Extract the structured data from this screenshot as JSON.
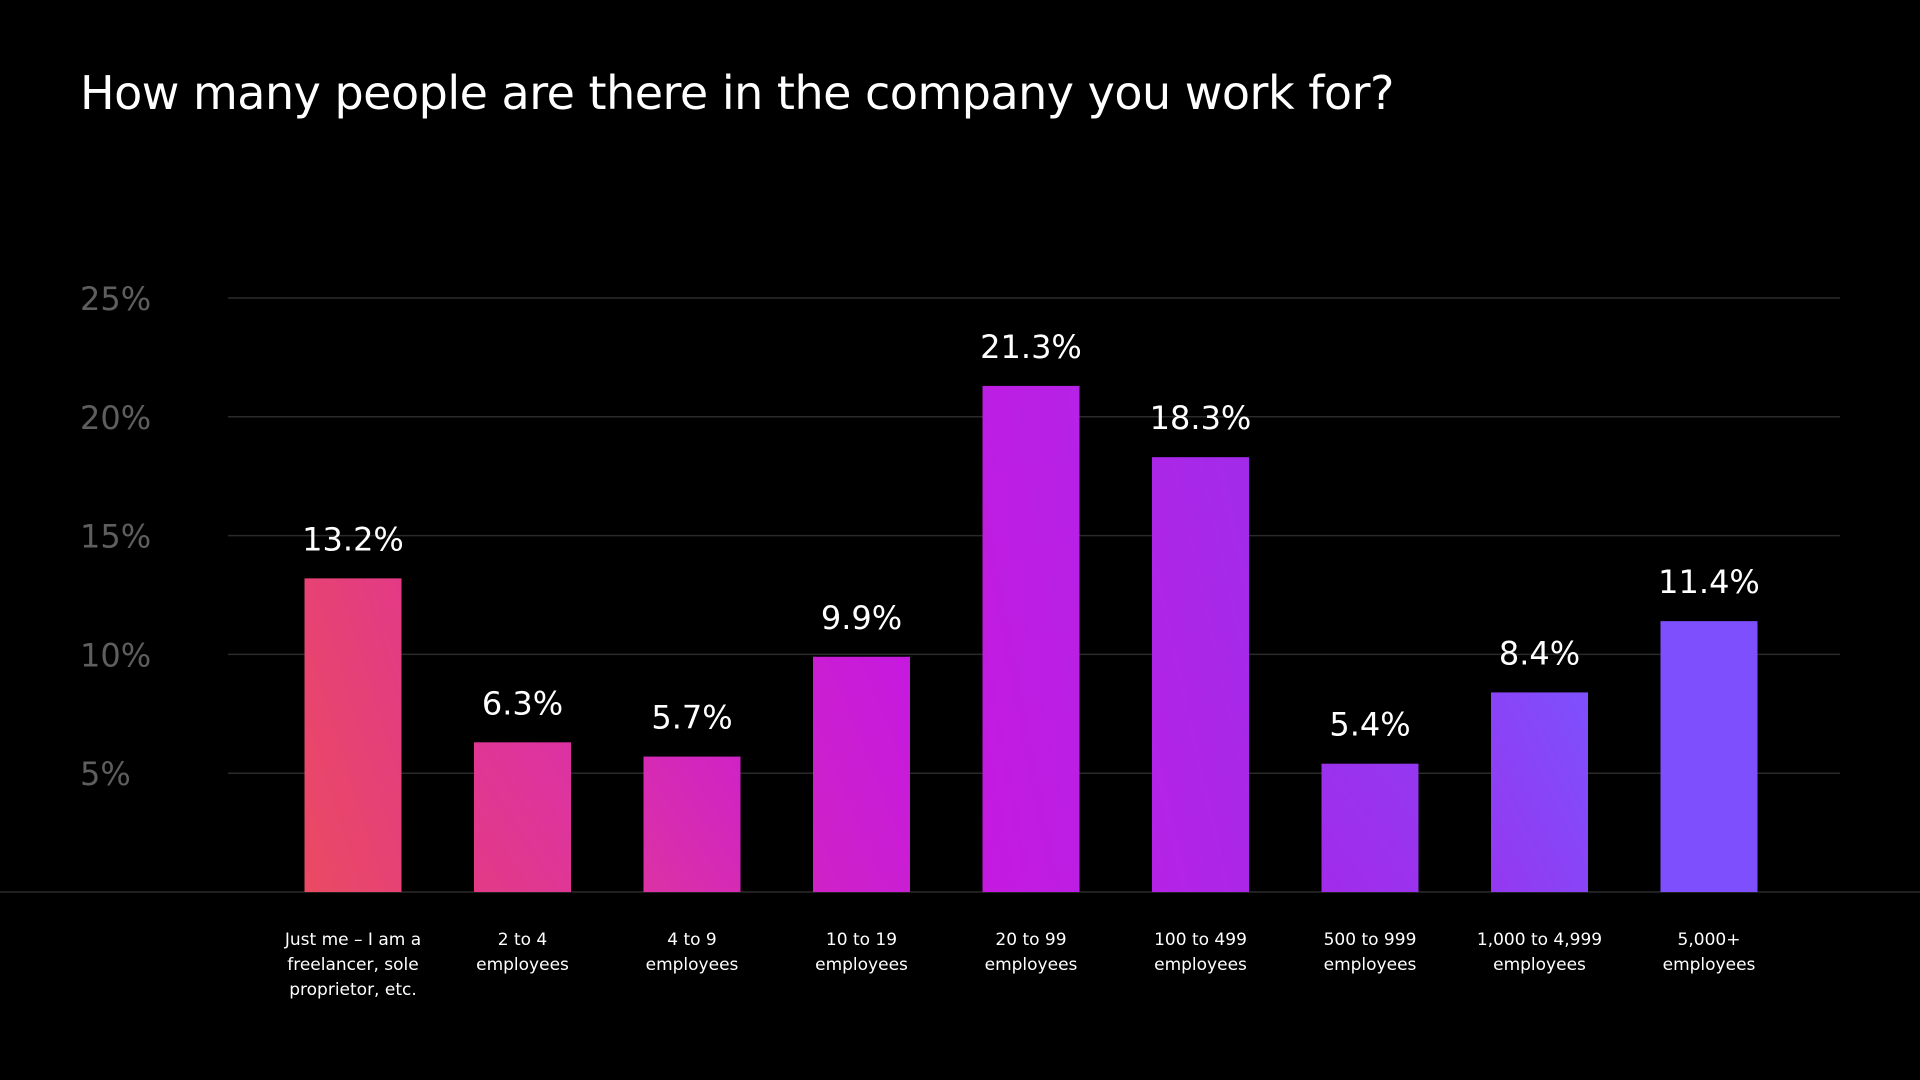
{
  "chart_data": {
    "type": "bar",
    "title": "How many people are there in the company you work for?",
    "categories": [
      "Just me – I am a freelancer, sole proprietor, etc.",
      "2 to 4 employees",
      "4 to 9 employees",
      "10 to 19 employees",
      "20 to 99 employees",
      "100 to 499 employees",
      "500 to 999 employees",
      "1,000 to 4,999 employees",
      "5,000+ employees"
    ],
    "category_lines": [
      [
        "Just me – I am a",
        "freelancer, sole",
        "proprietor, etc."
      ],
      [
        "2 to 4",
        "employees"
      ],
      [
        "4 to 9",
        "employees"
      ],
      [
        "10 to 19",
        "employees"
      ],
      [
        "20 to 99",
        "employees"
      ],
      [
        "100 to 499",
        "employees"
      ],
      [
        "500 to 999",
        "employees"
      ],
      [
        "1,000 to 4,999",
        "employees"
      ],
      [
        "5,000+",
        "employees"
      ]
    ],
    "values": [
      13.2,
      6.3,
      5.7,
      9.9,
      21.3,
      18.3,
      5.4,
      8.4,
      11.4
    ],
    "value_labels": [
      "13.2%",
      "6.3%",
      "5.7%",
      "9.9%",
      "21.3%",
      "18.3%",
      "5.4%",
      "8.4%",
      "11.4%"
    ],
    "ylim": [
      0,
      25
    ],
    "yticks": [
      5,
      10,
      15,
      20,
      25
    ],
    "ytick_labels": [
      "5%",
      "10%",
      "15%",
      "20%",
      "25%"
    ],
    "xlabel": "",
    "ylabel": "",
    "grid": true,
    "colors": [
      "#ea4a62",
      "#e33a86",
      "#dc32a4",
      "#cf22c6",
      "#c519e0",
      "#b522e6",
      "#a22bea",
      "#9438f0",
      "#7e50fd"
    ]
  }
}
